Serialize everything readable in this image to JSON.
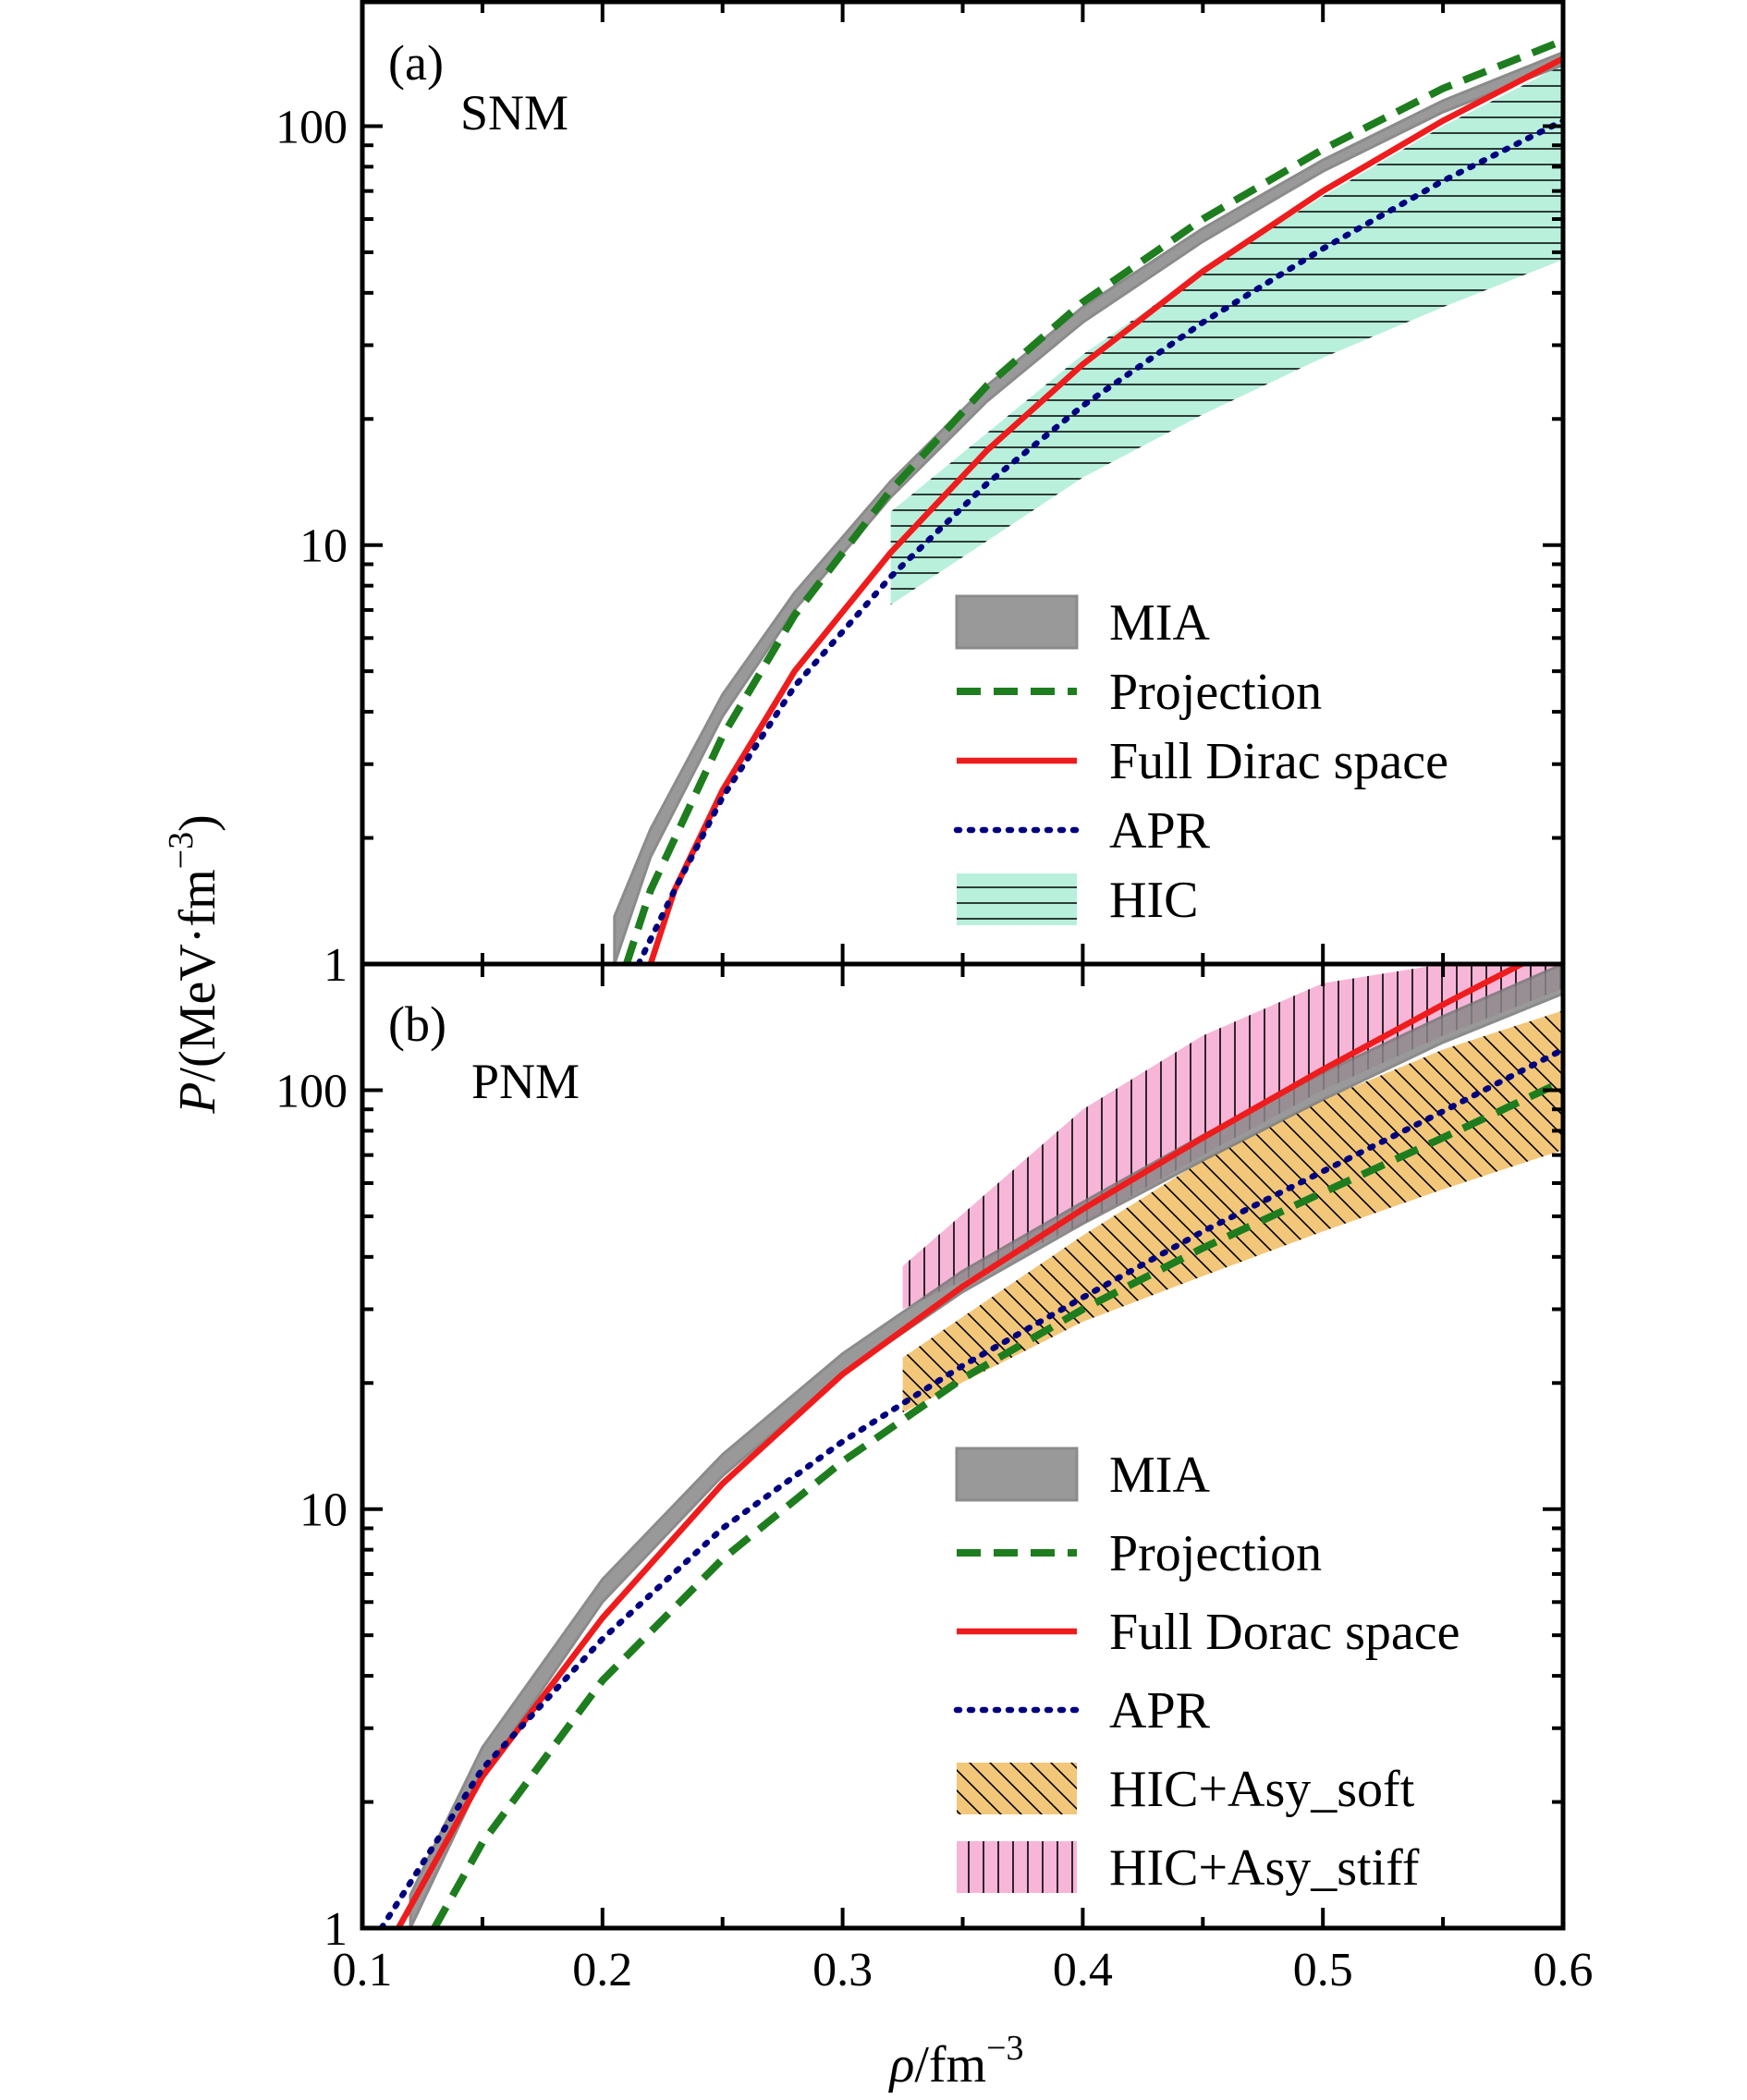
{
  "x_axis": {
    "label_symbol": "ρ",
    "label_rest": "/fm",
    "label_exp": "−3",
    "ticks": [
      "0.1",
      "0.2",
      "0.3",
      "0.4",
      "0.5",
      "0.6"
    ]
  },
  "y_axis": {
    "label_symbol": "P",
    "label_rest": "/(MeV·fm",
    "label_exp": "−3",
    "label_close": ")",
    "ticks": [
      "1",
      "10",
      "100"
    ]
  },
  "colors": {
    "mia": "#888888",
    "projection": "#1e7d1e",
    "full_dirac": "#ee1c1c",
    "apr": "#00007f",
    "hic": "#b8f0dc",
    "asy_soft": "#f2c77a",
    "asy_stiff": "#f7b6d8"
  },
  "chart_data": [
    {
      "type": "line",
      "panel": "(a)",
      "subtitle": "SNM",
      "x_scale": "linear",
      "y_scale": "log",
      "xlim": [
        0.1,
        0.6
      ],
      "ylim": [
        1,
        200
      ],
      "xlabel": "ρ/fm−3",
      "ylabel": "P/(MeV·fm−3)",
      "legend": [
        "MIA",
        "Projection",
        "Full Dirac space",
        "APR",
        "HIC"
      ],
      "legend_position": "lower-right",
      "series": [
        {
          "name": "MIA",
          "kind": "band",
          "x": [
            0.205,
            0.22,
            0.25,
            0.28,
            0.32,
            0.36,
            0.4,
            0.45,
            0.5,
            0.55,
            0.6
          ],
          "lower": [
            1.0,
            1.8,
            3.9,
            7.0,
            13.0,
            22.0,
            34.0,
            53.0,
            78.0,
            108.0,
            140.0
          ],
          "upper": [
            1.3,
            2.1,
            4.4,
            7.7,
            14.2,
            24.0,
            37.0,
            57.0,
            83.0,
            115.0,
            150.0
          ]
        },
        {
          "name": "Projection",
          "kind": "dashed",
          "x": [
            0.21,
            0.22,
            0.25,
            0.28,
            0.32,
            0.36,
            0.4,
            0.45,
            0.5,
            0.55,
            0.6
          ],
          "y": [
            1.0,
            1.5,
            3.5,
            6.8,
            13.5,
            24.0,
            38.0,
            60.0,
            88.0,
            123.0,
            160.0
          ]
        },
        {
          "name": "Full Dirac space",
          "kind": "solid",
          "x": [
            0.22,
            0.23,
            0.25,
            0.28,
            0.32,
            0.36,
            0.4,
            0.45,
            0.5,
            0.55,
            0.6
          ],
          "y": [
            1.0,
            1.5,
            2.6,
            5.0,
            9.6,
            16.8,
            27.0,
            45.0,
            70.0,
            103.0,
            145.0
          ]
        },
        {
          "name": "APR",
          "kind": "dotted",
          "x": [
            0.215,
            0.23,
            0.25,
            0.28,
            0.32,
            0.36,
            0.4,
            0.45,
            0.5,
            0.55,
            0.6
          ],
          "y": [
            1.0,
            1.5,
            2.5,
            4.6,
            8.4,
            14.0,
            21.5,
            34.0,
            51.0,
            74.0,
            103.0
          ]
        },
        {
          "name": "HIC",
          "kind": "band",
          "x": [
            0.32,
            0.4,
            0.45,
            0.5,
            0.55,
            0.6
          ],
          "lower": [
            7.2,
            14.5,
            20.5,
            28.0,
            37.0,
            48.0
          ],
          "upper": [
            12.0,
            28.5,
            45.0,
            68.0,
            100.0,
            140.0
          ]
        }
      ]
    },
    {
      "type": "line",
      "panel": "(b)",
      "subtitle": "PNM",
      "x_scale": "linear",
      "y_scale": "log",
      "xlim": [
        0.1,
        0.6
      ],
      "ylim": [
        1,
        200
      ],
      "xlabel": "ρ/fm−3",
      "ylabel": "P/(MeV·fm−3)",
      "legend": [
        "MIA",
        "Projection",
        "Full Dorac space",
        "APR",
        "HIC+Asy_soft",
        "HIC+Asy_stiff"
      ],
      "legend_position": "lower-right",
      "series": [
        {
          "name": "MIA",
          "kind": "band",
          "x": [
            0.12,
            0.15,
            0.2,
            0.25,
            0.3,
            0.35,
            0.4,
            0.45,
            0.5,
            0.55,
            0.6
          ],
          "lower": [
            1.0,
            2.3,
            6.0,
            12.0,
            21.0,
            33.0,
            48.0,
            68.0,
            95.0,
            130.0,
            170.0
          ],
          "upper": [
            1.2,
            2.7,
            6.8,
            13.5,
            23.5,
            37.0,
            54.0,
            78.0,
            110.0,
            150.0,
            200.0
          ]
        },
        {
          "name": "Projection",
          "kind": "dashed",
          "x": [
            0.13,
            0.15,
            0.2,
            0.25,
            0.3,
            0.35,
            0.4,
            0.45,
            0.5,
            0.55,
            0.6
          ],
          "y": [
            1.0,
            1.6,
            3.9,
            7.6,
            13.0,
            20.5,
            30.0,
            42.0,
            57.0,
            77.0,
            105.0
          ]
        },
        {
          "name": "Full Dorac space",
          "kind": "solid",
          "x": [
            0.115,
            0.15,
            0.2,
            0.25,
            0.3,
            0.35,
            0.4,
            0.45,
            0.5,
            0.55,
            0.6
          ],
          "y": [
            1.0,
            2.3,
            5.5,
            11.5,
            21.0,
            34.0,
            52.0,
            77.0,
            112.0,
            160.0,
            225.0
          ]
        },
        {
          "name": "APR",
          "kind": "dotted",
          "x": [
            0.108,
            0.15,
            0.2,
            0.25,
            0.3,
            0.35,
            0.4,
            0.45,
            0.5,
            0.55,
            0.6
          ],
          "y": [
            1.0,
            2.4,
            4.9,
            9.0,
            14.5,
            22.0,
            32.0,
            46.0,
            64.0,
            89.0,
            125.0
          ]
        },
        {
          "name": "HIC+Asy_soft",
          "kind": "band",
          "x": [
            0.325,
            0.4,
            0.45,
            0.5,
            0.55,
            0.6
          ],
          "lower": [
            17.0,
            28.0,
            36.0,
            46.0,
            58.0,
            72.0
          ],
          "upper": [
            23.0,
            45.0,
            68.0,
            95.0,
            125.0,
            155.0
          ]
        },
        {
          "name": "HIC+Asy_stiff",
          "kind": "band",
          "x": [
            0.325,
            0.4,
            0.45,
            0.5,
            0.55,
            0.6
          ],
          "lower": [
            30.0,
            48.0,
            70.0,
            100.0,
            135.0,
            175.0
          ],
          "upper": [
            38.0,
            90.0,
            135.0,
            180.0,
            200.0,
            200.0
          ]
        }
      ]
    }
  ]
}
